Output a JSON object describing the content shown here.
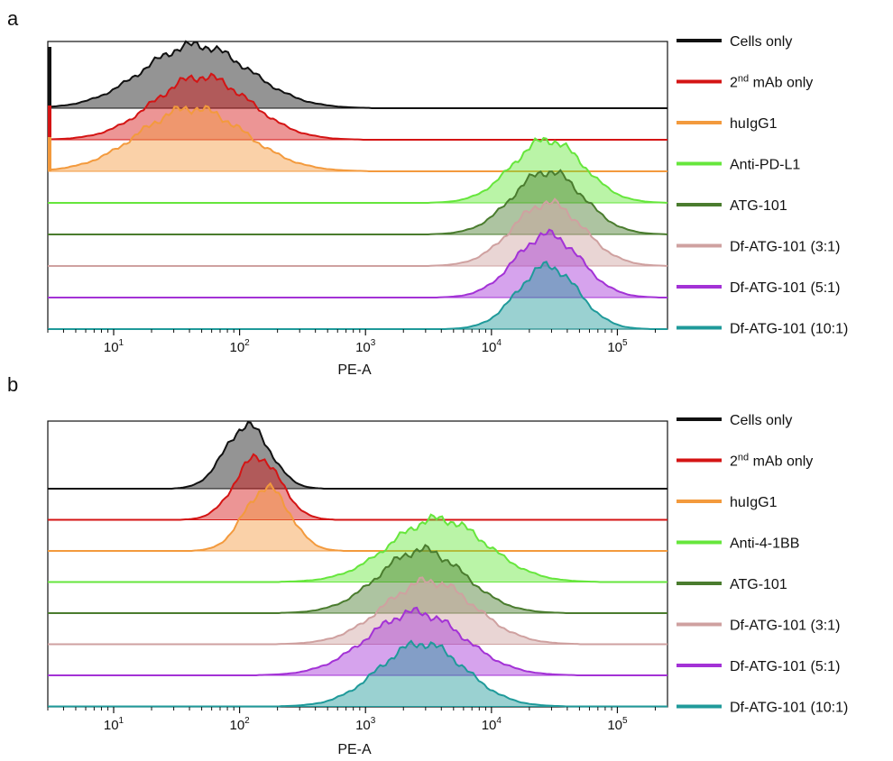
{
  "figure": {
    "panel_a_label": "a",
    "panel_b_label": "b"
  },
  "legend_a": [
    {
      "label": "Cells only",
      "color": "#111111"
    },
    {
      "label": "mAb only",
      "prefix": "2",
      "sup": "nd",
      "color": "#d41414"
    },
    {
      "label": "huIgG1",
      "color": "#f39a3d"
    },
    {
      "label": "Anti-PD-L1",
      "color": "#66e63c"
    },
    {
      "label": "ATG-101",
      "color": "#4a7c2e"
    },
    {
      "label": "Df-ATG-101 (3:1)",
      "color": "#cfa1a0"
    },
    {
      "label": "Df-ATG-101 (5:1)",
      "color": "#a332d6"
    },
    {
      "label": "Df-ATG-101 (10:1)",
      "color": "#1f9a9a"
    }
  ],
  "legend_b": [
    {
      "label": "Cells only",
      "color": "#111111"
    },
    {
      "label": "mAb only",
      "prefix": "2",
      "sup": "nd",
      "color": "#d41414"
    },
    {
      "label": "huIgG1",
      "color": "#f39a3d"
    },
    {
      "label": "Anti-4-1BB",
      "color": "#66e63c"
    },
    {
      "label": "ATG-101",
      "color": "#4a7c2e"
    },
    {
      "label": "Df-ATG-101 (3:1)",
      "color": "#cfa1a0"
    },
    {
      "label": "Df-ATG-101 (5:1)",
      "color": "#a332d6"
    },
    {
      "label": "Df-ATG-101 (10:1)",
      "color": "#1f9a9a"
    }
  ],
  "chart_data": [
    {
      "type": "area",
      "panel": "a",
      "xlabel": "PE-A",
      "xscale": "log",
      "xlim": [
        3,
        250000
      ],
      "xticks": [
        10,
        100,
        1000,
        10000,
        100000
      ],
      "xtick_labels": [
        {
          "base": "10",
          "exp": "1"
        },
        {
          "base": "10",
          "exp": "2"
        },
        {
          "base": "10",
          "exp": "3"
        },
        {
          "base": "10",
          "exp": "4"
        },
        {
          "base": "10",
          "exp": "5"
        }
      ],
      "ylabel": "",
      "layout": "offset histograms, stacked top to bottom",
      "grid": false,
      "legend_position": "right",
      "series": [
        {
          "name": "Cells only",
          "color": "#111111",
          "peak": 45,
          "width": 0.42,
          "spike_at_min": true
        },
        {
          "name": "2nd mAb only",
          "color": "#d41414",
          "peak": 50,
          "width": 0.38,
          "spike_at_min": true
        },
        {
          "name": "huIgG1",
          "color": "#f39a3d",
          "peak": 42,
          "width": 0.42,
          "spike_at_min": true
        },
        {
          "name": "Anti-PD-L1",
          "color": "#66e63c",
          "peak": 28000,
          "width": 0.28
        },
        {
          "name": "ATG-101",
          "color": "#4a7c2e",
          "peak": 28000,
          "width": 0.28
        },
        {
          "name": "Df-ATG-101 (3:1)",
          "color": "#cfa1a0",
          "peak": 28000,
          "width": 0.28
        },
        {
          "name": "Df-ATG-101 (5:1)",
          "color": "#a332d6",
          "peak": 28000,
          "width": 0.26
        },
        {
          "name": "Df-ATG-101 (10:1)",
          "color": "#1f9a9a",
          "peak": 28000,
          "width": 0.24
        }
      ]
    },
    {
      "type": "area",
      "panel": "b",
      "xlabel": "PE-A",
      "xscale": "log",
      "xlim": [
        3,
        250000
      ],
      "xticks": [
        10,
        100,
        1000,
        10000,
        100000
      ],
      "xtick_labels": [
        {
          "base": "10",
          "exp": "1"
        },
        {
          "base": "10",
          "exp": "2"
        },
        {
          "base": "10",
          "exp": "3"
        },
        {
          "base": "10",
          "exp": "4"
        },
        {
          "base": "10",
          "exp": "5"
        }
      ],
      "ylabel": "",
      "layout": "offset histograms, stacked top to bottom",
      "grid": false,
      "legend_position": "right",
      "series": [
        {
          "name": "Cells only",
          "color": "#111111",
          "peak": 115,
          "width": 0.18
        },
        {
          "name": "2nd mAb only",
          "color": "#d41414",
          "peak": 140,
          "width": 0.18
        },
        {
          "name": "huIgG1",
          "color": "#f39a3d",
          "peak": 165,
          "width": 0.18
        },
        {
          "name": "Anti-4-1BB",
          "color": "#66e63c",
          "peak": 3800,
          "width": 0.38
        },
        {
          "name": "ATG-101",
          "color": "#4a7c2e",
          "peak": 2800,
          "width": 0.34
        },
        {
          "name": "Df-ATG-101 (3:1)",
          "color": "#cfa1a0",
          "peak": 3200,
          "width": 0.36
        },
        {
          "name": "Df-ATG-101 (5:1)",
          "color": "#a332d6",
          "peak": 2500,
          "width": 0.38
        },
        {
          "name": "Df-ATG-101 (10:1)",
          "color": "#1f9a9a",
          "peak": 2800,
          "width": 0.34
        }
      ]
    }
  ]
}
